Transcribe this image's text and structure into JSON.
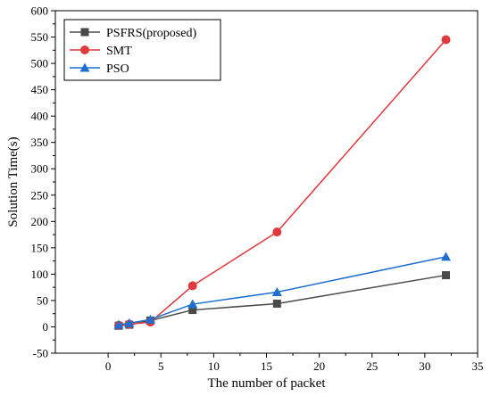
{
  "chart_data": {
    "type": "line",
    "xlabel": "The number of packet",
    "ylabel": "Solution Time(s)",
    "xlim": [
      -5,
      35
    ],
    "ylim": [
      -50,
      600
    ],
    "xticks": [
      0,
      5,
      10,
      15,
      20,
      25,
      30,
      35
    ],
    "yticks": [
      -50,
      0,
      50,
      100,
      150,
      200,
      250,
      300,
      350,
      400,
      450,
      500,
      550,
      600
    ],
    "grid": false,
    "legend": "top-left",
    "series": [
      {
        "name": "PSFRS(proposed)",
        "color": "#4a4a4a",
        "marker": "square",
        "x": [
          1,
          2,
          4,
          8,
          16,
          32
        ],
        "y": [
          2,
          4,
          12,
          32,
          44,
          98
        ]
      },
      {
        "name": "SMT",
        "color": "#e0393e",
        "marker": "circle",
        "x": [
          1,
          2,
          4,
          8,
          16,
          32
        ],
        "y": [
          3,
          5,
          9,
          78,
          180,
          545
        ]
      },
      {
        "name": "PSO",
        "color": "#1f6fd1",
        "marker": "triangle",
        "x": [
          1,
          2,
          4,
          8,
          16,
          32
        ],
        "y": [
          4,
          7,
          14,
          43,
          66,
          133
        ]
      }
    ]
  }
}
